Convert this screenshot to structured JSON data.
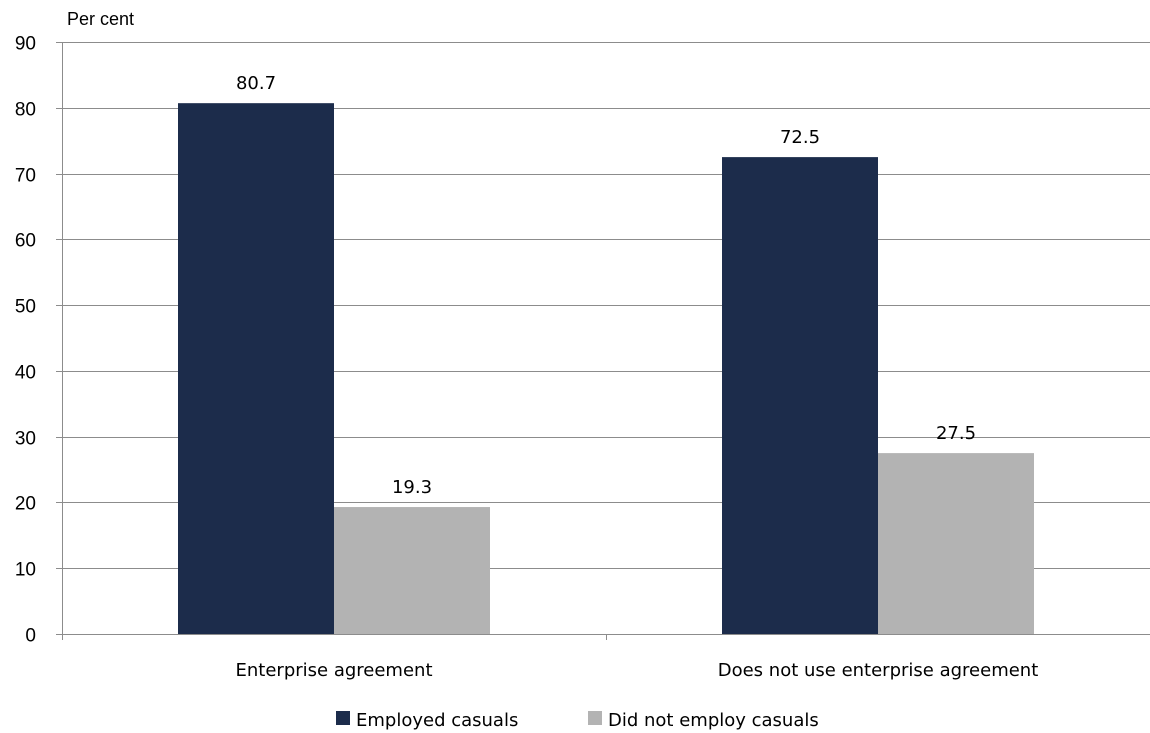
{
  "chart_data": {
    "type": "bar",
    "ylabel": "Per cent",
    "ylim": [
      0,
      90
    ],
    "ytick_step": 10,
    "grid": true,
    "legend_position": "bottom",
    "categories": [
      "Enterprise agreement",
      "Does not use enterprise agreement"
    ],
    "series": [
      {
        "name": "Employed casuals",
        "color": "#1c2c4b",
        "values": [
          80.7,
          72.5
        ]
      },
      {
        "name": "Did not employ casuals",
        "color": "#b3b3b3",
        "values": [
          19.3,
          27.5
        ]
      }
    ]
  }
}
